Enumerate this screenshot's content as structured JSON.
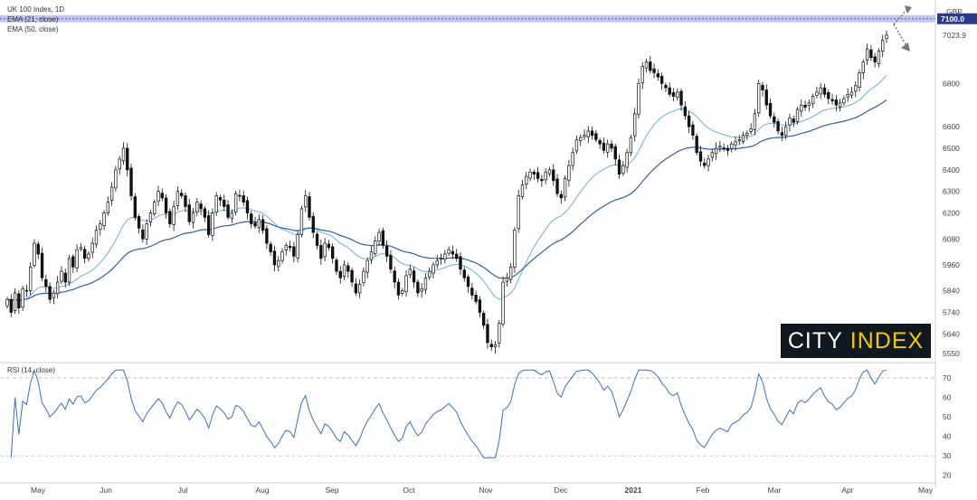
{
  "legend": {
    "title": "UK 100 Index, 1D",
    "ema_fast": "EMA (21, close)",
    "ema_slow": "EMA (50, close)",
    "rsi": "RSI (14, close)"
  },
  "brand": {
    "word1": "CITY",
    "word2": "INDEX"
  },
  "colors": {
    "up": "#ffffff",
    "down": "#111111",
    "wick": "#111111",
    "ema": "#3a78c8",
    "rsi": "#3a6fc4",
    "level_band": "#b9bde8",
    "level_label": "#2a3a8c"
  },
  "chart_data": [
    {
      "type": "candlestick",
      "title": "UK 100 Index, 1D",
      "currency_label": "GBP",
      "y_ticks": [
        5550,
        5640,
        5740,
        5840,
        5960,
        6080,
        6200,
        6300,
        6400,
        6500,
        6600,
        6800
      ],
      "ylim": [
        5520,
        7170
      ],
      "x_ticks": [
        "May",
        "Jun",
        "Jul",
        "Aug",
        "Sep",
        "Oct",
        "Nov",
        "Dec",
        "2021",
        "Feb",
        "Mar",
        "Apr",
        "May"
      ],
      "horizontal_level": {
        "value": 7100,
        "label": "7100.0"
      },
      "last_price": {
        "value": 7023.9,
        "label": "7023.9"
      },
      "close": [
        5800,
        5740,
        5830,
        5760,
        5850,
        5840,
        5950,
        6060,
        6010,
        5900,
        5860,
        5800,
        5830,
        5880,
        5930,
        5880,
        5990,
        5950,
        6030,
        6040,
        5990,
        6010,
        6060,
        6120,
        6150,
        6200,
        6250,
        6320,
        6400,
        6450,
        6500,
        6400,
        6280,
        6180,
        6130,
        6080,
        6150,
        6200,
        6250,
        6300,
        6270,
        6200,
        6150,
        6230,
        6300,
        6280,
        6230,
        6160,
        6200,
        6250,
        6220,
        6180,
        6100,
        6200,
        6280,
        6260,
        6230,
        6180,
        6200,
        6290,
        6280,
        6250,
        6200,
        6150,
        6140,
        6170,
        6120,
        6060,
        6020,
        5960,
        5980,
        6020,
        6050,
        6040,
        6000,
        6100,
        6220,
        6280,
        6180,
        6110,
        6050,
        5990,
        6060,
        6040,
        5990,
        5930,
        5900,
        5960,
        5930,
        5880,
        5830,
        5870,
        5930,
        5980,
        6020,
        6070,
        6110,
        6050,
        6000,
        5940,
        5880,
        5820,
        5840,
        5910,
        5940,
        5880,
        5830,
        5850,
        5900,
        5930,
        5960,
        5980,
        5990,
        6010,
        6030,
        6010,
        5990,
        5940,
        5900,
        5860,
        5820,
        5790,
        5740,
        5680,
        5600,
        5580,
        5590,
        5690,
        5880,
        5900,
        5950,
        6120,
        6280,
        6330,
        6370,
        6390,
        6380,
        6360,
        6350,
        6390,
        6400,
        6350,
        6290,
        6270,
        6360,
        6420,
        6480,
        6540,
        6550,
        6560,
        6580,
        6560,
        6540,
        6520,
        6490,
        6520,
        6500,
        6450,
        6380,
        6420,
        6480,
        6550,
        6660,
        6800,
        6880,
        6900,
        6860,
        6850,
        6830,
        6800,
        6780,
        6750,
        6740,
        6760,
        6700,
        6650,
        6600,
        6560,
        6480,
        6440,
        6420,
        6450,
        6480,
        6500,
        6510,
        6500,
        6490,
        6520,
        6530,
        6540,
        6560,
        6570,
        6590,
        6660,
        6800,
        6770,
        6700,
        6650,
        6620,
        6580,
        6560,
        6600,
        6640,
        6620,
        6680,
        6700,
        6690,
        6710,
        6740,
        6760,
        6780,
        6750,
        6730,
        6720,
        6700,
        6710,
        6730,
        6750,
        6760,
        6790,
        6850,
        6900,
        6960,
        6920,
        6900,
        6950,
        7000,
        7023.9
      ],
      "ema21_label": "EMA (21, close)",
      "ema50_label": "EMA (50, close)"
    },
    {
      "type": "line",
      "title": "RSI (14, close)",
      "y_ticks": [
        20,
        30,
        40,
        50,
        60,
        70
      ],
      "ylim": [
        18,
        76
      ],
      "reference_lines": [
        70,
        30
      ]
    }
  ]
}
